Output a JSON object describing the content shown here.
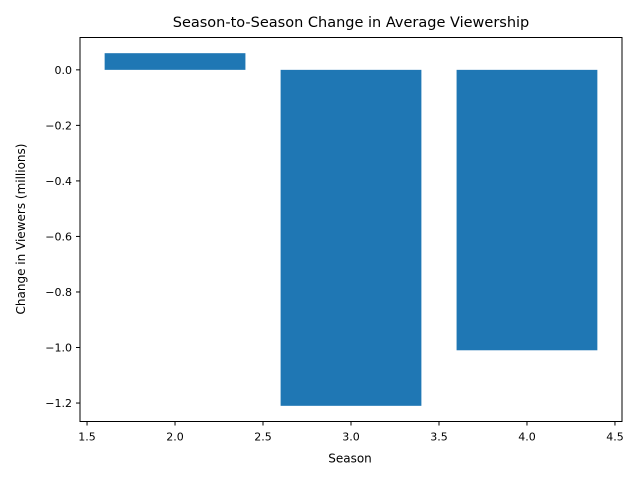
{
  "chart_data": {
    "type": "bar",
    "title": "Season-to-Season Change in Average Viewership",
    "xlabel": "Season",
    "ylabel": "Change in Viewers (millions)",
    "x": [
      2.0,
      3.0,
      4.0
    ],
    "values": [
      0.06,
      -1.21,
      -1.01
    ],
    "bar_width": 0.8,
    "xlim": [
      1.46,
      4.54
    ],
    "ylim": [
      -1.2665,
      0.1165
    ],
    "x_ticks": [
      1.5,
      2.0,
      2.5,
      3.0,
      3.5,
      4.0,
      4.5
    ],
    "x_tick_labels": [
      "1.5",
      "2.0",
      "2.5",
      "3.0",
      "3.5",
      "4.0",
      "4.5"
    ],
    "y_ticks": [
      0.0,
      -0.2,
      -0.4,
      -0.6,
      -0.8,
      -1.0,
      -1.2
    ],
    "y_tick_labels": [
      "0.0",
      "−0.2",
      "−0.4",
      "−0.6",
      "−0.8",
      "−1.0",
      "−1.2"
    ],
    "grid": false,
    "legend": "none",
    "bar_color": "#1f77b4"
  }
}
